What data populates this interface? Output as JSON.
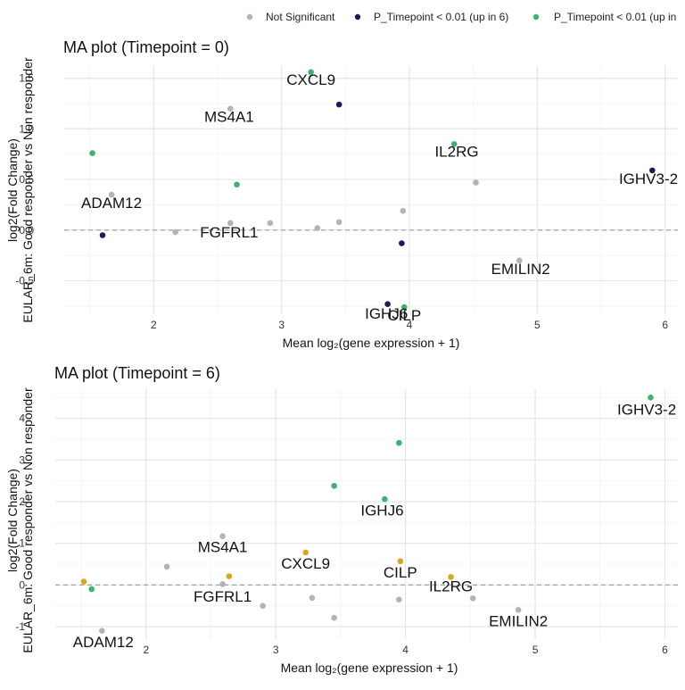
{
  "legend": {
    "items": [
      {
        "label": "Not Significant",
        "color": "#b3b3b3"
      },
      {
        "label": "P_Timepoint < 0.01 (up in 6)",
        "color": "#1a1a5c"
      },
      {
        "label": "P_Timepoint < 0.01 (up in",
        "color": "#3cb371"
      }
    ]
  },
  "chart_data": [
    {
      "type": "scatter",
      "title": "MA plot (Timepoint = 0)",
      "xlabel": "Mean log₂(gene expression + 1)",
      "ylabel_line1": "log2(Fold Change)",
      "ylabel_line2": "EULAR_6m: Good responder vs Non responder",
      "xlim": [
        1.3,
        6.1
      ],
      "ylim": [
        -0.83,
        1.62
      ],
      "x_ticks": [
        2,
        3,
        4,
        5,
        6
      ],
      "y_ticks": [
        -0.5,
        0.0,
        0.5,
        1.0,
        1.5
      ],
      "y_tick_labels": [
        "-0.5",
        "0.0",
        "0.5",
        "1.0",
        "1.5"
      ],
      "reference_line": 0,
      "points": [
        {
          "x": 1.52,
          "y": 0.76,
          "color": "#3cb371"
        },
        {
          "x": 1.6,
          "y": -0.05,
          "color": "#1a1a5c"
        },
        {
          "x": 1.67,
          "y": 0.35,
          "color": "#b3b3b3"
        },
        {
          "x": 2.17,
          "y": -0.02,
          "color": "#b3b3b3"
        },
        {
          "x": 2.6,
          "y": 1.2,
          "color": "#b3b3b3"
        },
        {
          "x": 2.6,
          "y": 0.07,
          "color": "#b3b3b3"
        },
        {
          "x": 2.65,
          "y": 0.45,
          "color": "#3cb371"
        },
        {
          "x": 2.91,
          "y": 0.07,
          "color": "#b3b3b3"
        },
        {
          "x": 3.23,
          "y": 1.56,
          "color": "#3cb371"
        },
        {
          "x": 3.28,
          "y": 0.02,
          "color": "#b3b3b3"
        },
        {
          "x": 3.45,
          "y": 1.24,
          "color": "#1a1a5c"
        },
        {
          "x": 3.45,
          "y": 0.08,
          "color": "#b3b3b3"
        },
        {
          "x": 3.83,
          "y": -0.73,
          "color": "#1a1a5c"
        },
        {
          "x": 3.94,
          "y": -0.13,
          "color": "#1a1a5c"
        },
        {
          "x": 3.95,
          "y": 0.19,
          "color": "#b3b3b3"
        },
        {
          "x": 3.96,
          "y": -0.76,
          "color": "#3cb371"
        },
        {
          "x": 4.35,
          "y": 0.85,
          "color": "#3cb371"
        },
        {
          "x": 4.52,
          "y": 0.47,
          "color": "#b3b3b3"
        },
        {
          "x": 4.86,
          "y": -0.3,
          "color": "#b3b3b3"
        },
        {
          "x": 5.9,
          "y": 0.59,
          "color": "#1a1a5c"
        }
      ],
      "labels": [
        {
          "text": "CXCL9",
          "x": 3.23,
          "y": 1.49
        },
        {
          "text": "MS4A1",
          "x": 2.59,
          "y": 1.12
        },
        {
          "text": "IL2RG",
          "x": 4.37,
          "y": 0.78
        },
        {
          "text": "IGHV3-2",
          "x": 5.87,
          "y": 0.51
        },
        {
          "text": "ADAM12",
          "x": 1.67,
          "y": 0.27
        },
        {
          "text": "FGFRL1",
          "x": 2.59,
          "y": -0.02
        },
        {
          "text": "EMILIN2",
          "x": 4.87,
          "y": -0.38
        },
        {
          "text": "IGHJ6",
          "x": 3.82,
          "y": -0.82
        },
        {
          "text": "CILP",
          "x": 3.96,
          "y": -0.84
        }
      ]
    },
    {
      "type": "scatter",
      "title": "MA plot (Timepoint = 6)",
      "xlabel": "Mean log₂(gene expression + 1)",
      "ylabel_line1": "log2(Fold Change)",
      "ylabel_line2": "EULAR_6m: Good responder vs Non responder",
      "xlim": [
        1.3,
        6.1
      ],
      "ylim": [
        -1.3,
        4.7
      ],
      "x_ticks": [
        2,
        3,
        4,
        5,
        6
      ],
      "y_ticks": [
        -1,
        0,
        1,
        2,
        3,
        4
      ],
      "y_tick_labels": [
        "-1",
        "0",
        "1",
        "2",
        "3",
        "4"
      ],
      "reference_line": 0,
      "points": [
        {
          "x": 1.52,
          "y": 0.08,
          "color": "#daa520"
        },
        {
          "x": 1.58,
          "y": -0.1,
          "color": "#3cb371"
        },
        {
          "x": 1.66,
          "y": -1.1,
          "color": "#b3b3b3"
        },
        {
          "x": 2.16,
          "y": 0.44,
          "color": "#b3b3b3"
        },
        {
          "x": 2.59,
          "y": 1.17,
          "color": "#b3b3b3"
        },
        {
          "x": 2.59,
          "y": 0.02,
          "color": "#b3b3b3"
        },
        {
          "x": 2.64,
          "y": 0.21,
          "color": "#daa520"
        },
        {
          "x": 2.9,
          "y": -0.5,
          "color": "#b3b3b3"
        },
        {
          "x": 3.23,
          "y": 0.78,
          "color": "#daa520"
        },
        {
          "x": 3.28,
          "y": -0.31,
          "color": "#b3b3b3"
        },
        {
          "x": 3.45,
          "y": 2.38,
          "color": "#3cb371"
        },
        {
          "x": 3.45,
          "y": -0.79,
          "color": "#b3b3b3"
        },
        {
          "x": 3.84,
          "y": 2.06,
          "color": "#3cb371"
        },
        {
          "x": 3.95,
          "y": 3.41,
          "color": "#3cb371"
        },
        {
          "x": 3.96,
          "y": 0.57,
          "color": "#daa520"
        },
        {
          "x": 3.95,
          "y": -0.35,
          "color": "#b3b3b3"
        },
        {
          "x": 4.35,
          "y": 0.19,
          "color": "#daa520"
        },
        {
          "x": 4.52,
          "y": -0.32,
          "color": "#b3b3b3"
        },
        {
          "x": 4.87,
          "y": -0.6,
          "color": "#b3b3b3"
        },
        {
          "x": 5.89,
          "y": 4.5,
          "color": "#3cb371"
        }
      ],
      "labels": [
        {
          "text": "IGHV3-2",
          "x": 5.86,
          "y": 4.22
        },
        {
          "text": "IGHJ6",
          "x": 3.82,
          "y": 1.8
        },
        {
          "text": "MS4A1",
          "x": 2.59,
          "y": 0.92
        },
        {
          "text": "CXCL9",
          "x": 3.23,
          "y": 0.52
        },
        {
          "text": "CILP",
          "x": 3.96,
          "y": 0.31
        },
        {
          "text": "IL2RG",
          "x": 4.35,
          "y": -0.03
        },
        {
          "text": "FGFRL1",
          "x": 2.59,
          "y": -0.27
        },
        {
          "text": "EMILIN2",
          "x": 4.87,
          "y": -0.86
        },
        {
          "text": "ADAM12",
          "x": 1.67,
          "y": -1.36
        }
      ]
    }
  ]
}
